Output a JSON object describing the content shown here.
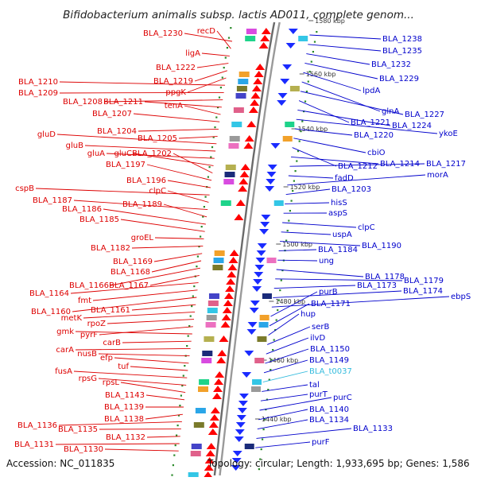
{
  "title": "Bifidobacterium animalis subsp. lactis AD011, complete genom...",
  "footer": {
    "accession": "Accession: NC_011835",
    "summary": "Topology: circular; Length: 1,933,695 bp; Genes: 1,586"
  },
  "colors": {
    "left_label": "#dd0000",
    "right_label": "#0000cc",
    "trna_label": "#33bbdd",
    "backbone": "#888888",
    "tick": "#2a8a2a",
    "forward_gene": "#ff0000",
    "reverse_gene": "#1a2bff"
  },
  "kbp_marks": [
    "1580 kbp",
    "1560 kbp",
    "1540 kbp",
    "1520 kbp",
    "1500 kbp",
    "1480 kbp",
    "1460 kbp",
    "1440 kbp"
  ],
  "left_labels": [
    "BLA_1230",
    "recD",
    "ligA",
    "BLA_1222",
    "BLA_1219",
    "ppgK",
    "BLA_1210",
    "BLA_1209",
    "BLA_1208",
    "BLA_1211",
    "tenA",
    "BLA_1207",
    "BLA_1204",
    "BLA_1205",
    "gluD",
    "gluB",
    "gluA",
    "gluC",
    "BLA_1202",
    "BLA_1197",
    "BLA_1196",
    "cspB",
    "clpC",
    "BLA_1187",
    "BLA_1189",
    "BLA_1186",
    "BLA_1185",
    "groEL",
    "BLA_1182",
    "BLA_1169",
    "BLA_1168",
    "BLA_1166",
    "BLA_1167",
    "BLA_1164",
    "fmt",
    "BLA_1160",
    "BLA_1161",
    "metK",
    "rpoZ",
    "pyrF",
    "gmk",
    "carB",
    "carA",
    "nusB",
    "efp",
    "tuf",
    "fusA",
    "rpsG",
    "rpsL",
    "BLA_1143",
    "BLA_1139",
    "BLA_1138",
    "BLA_1136",
    "BLA_1135",
    "BLA_1132",
    "BLA_1131",
    "BLA_1130"
  ],
  "right_labels": [
    "BLA_1238",
    "BLA_1235",
    "BLA_1232",
    "BLA_1229",
    "lpdA",
    "glnA",
    "BLA_1227",
    "BLA_1221",
    "BLA_1224",
    "ykoE",
    "BLA_1220",
    "cbiO",
    "BLA_1212",
    "BLA_1214",
    "BLA_1217",
    "fadD",
    "morA",
    "BLA_1203",
    "hisS",
    "aspS",
    "clpC",
    "uspA",
    "BLA_1190",
    "BLA_1184",
    "ung",
    "BLA_1178",
    "BLA_1179",
    "BLA_1173",
    "BLA_1174",
    "ebpS",
    "purB",
    "BLA_1171",
    "hup",
    "serB",
    "ilvD",
    "BLA_1150",
    "BLA_1149",
    "BLA_t0037",
    "tal",
    "purT",
    "purC",
    "BLA_1140",
    "BLA_1134",
    "BLA_1133",
    "purF"
  ]
}
